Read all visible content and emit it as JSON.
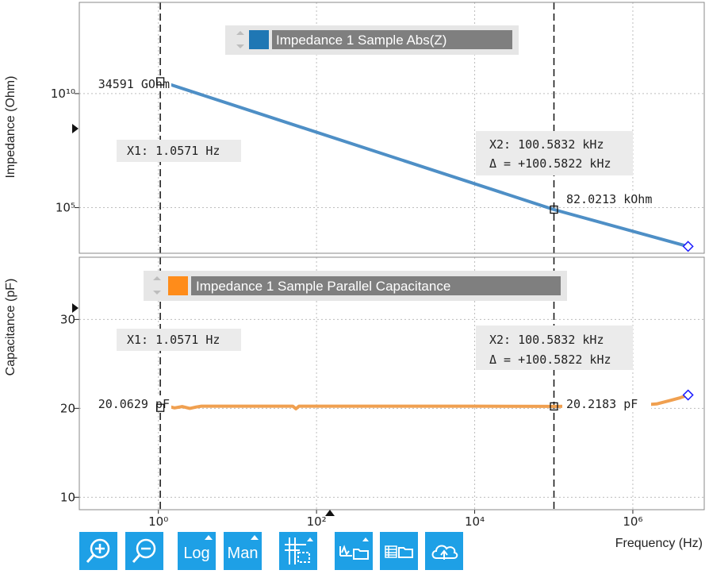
{
  "chart_data": [
    {
      "type": "line",
      "ylabel": "Impedance (Ohm)",
      "yscale": "log",
      "ylim": [
        1000,
        100000000000000
      ],
      "xscale": "log",
      "xlim": [
        0.1,
        8000000
      ],
      "yticks": [
        {
          "value": 10000000000,
          "label": "10¹⁰"
        },
        {
          "value": 100000,
          "label": "10⁵"
        }
      ],
      "legend": {
        "label": "Impedance 1 Sample Abs(Z)",
        "color": "#1f77b4",
        "placement": "top-center"
      },
      "series": [
        {
          "name": "Impedance 1 Sample Abs(Z)",
          "color": "#4e8fc6",
          "x": [
            1.0571,
            100583.2,
            5000000
          ],
          "y": [
            34591000000,
            82021.3,
            2000
          ]
        }
      ],
      "cursor_labels": {
        "x1_value": "34591 GOhm",
        "x2_value": "82.0213 kOhm"
      },
      "cursor_boxes": {
        "x1": "X1: 1.0571 Hz",
        "x2": "X2: 100.5832 kHz",
        "delta": "Δ = +100.5822 kHz"
      }
    },
    {
      "type": "line",
      "ylabel": "Capacitance (pF)",
      "ylim": [
        8.6,
        37
      ],
      "xlabel": "Frequency (Hz)",
      "xscale": "log",
      "xlim": [
        0.1,
        8000000
      ],
      "yticks": [
        {
          "value": 30,
          "label": "30"
        },
        {
          "value": 20,
          "label": "20"
        },
        {
          "value": 10,
          "label": "10"
        }
      ],
      "xticks": [
        {
          "value": 1,
          "label": "10⁰"
        },
        {
          "value": 100,
          "label": "10²"
        },
        {
          "value": 10000,
          "label": "10⁴"
        },
        {
          "value": 1000000,
          "label": "10⁶"
        }
      ],
      "legend": {
        "label": "Impedance 1 Sample Parallel Capacitance",
        "color": "#ff8c1a",
        "placement": "top-center"
      },
      "series": [
        {
          "name": "Impedance 1 Sample Parallel Capacitance",
          "color": "#f0a050",
          "x": [
            1.0571,
            1.3,
            1.6,
            2.0,
            2.5,
            3.0,
            3.5,
            5,
            10,
            50,
            55,
            60,
            100,
            1000,
            10000,
            100583.2,
            300000,
            1000000,
            2000000,
            3000000,
            4000000,
            5000000
          ],
          "y": [
            20.06,
            20.25,
            20.05,
            20.2,
            20.0,
            20.15,
            20.25,
            20.25,
            20.25,
            20.25,
            19.95,
            20.25,
            20.25,
            20.25,
            20.25,
            20.22,
            20.25,
            20.3,
            20.5,
            20.9,
            21.2,
            21.5
          ]
        }
      ],
      "cursor_labels": {
        "x1_value": "20.0629 pF",
        "x2_value": "20.2183 pF"
      },
      "cursor_boxes": {
        "x1": "X1: 1.0571 Hz",
        "x2": "X2: 100.5832 kHz",
        "delta": "Δ = +100.5822 kHz"
      }
    }
  ],
  "toolbar": {
    "log_label": "Log",
    "man_label": "Man"
  },
  "colors": {
    "accent": "#1ea0e6"
  }
}
